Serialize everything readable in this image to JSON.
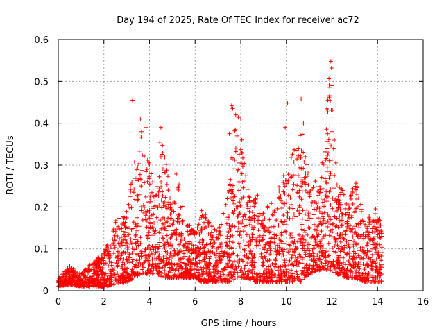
{
  "chart_data": {
    "type": "scatter",
    "title": "Day 194 of 2025, Rate Of TEC Index for receiver ac72",
    "xlabel": "GPS time / hours",
    "ylabel": "ROTI / TECUs",
    "xlim": [
      0,
      16
    ],
    "ylim": [
      0,
      0.6
    ],
    "xticks": [
      0,
      2,
      4,
      6,
      8,
      10,
      12,
      14,
      16
    ],
    "yticks": [
      0,
      0.1,
      0.2,
      0.3,
      0.4,
      0.5,
      0.6
    ],
    "xtick_labels": [
      "0",
      "2",
      "4",
      "6",
      "8",
      "10",
      "12",
      "14",
      "16"
    ],
    "ytick_labels": [
      "0",
      "0.1",
      "0.2",
      "0.3",
      "0.4",
      "0.5",
      "0.6"
    ],
    "grid": true,
    "marker": "+",
    "marker_color": "#ff0000",
    "x_data_range": [
      0,
      14.2
    ],
    "series": [
      {
        "name": "ROTI",
        "envelope": {
          "x": [
            0,
            0.5,
            1.0,
            1.5,
            2.0,
            2.5,
            3.0,
            3.3,
            3.6,
            3.8,
            4.0,
            4.3,
            4.6,
            5.0,
            5.2,
            5.5,
            6.0,
            6.3,
            7.0,
            7.5,
            7.8,
            8.0,
            8.3,
            8.7,
            9.0,
            9.5,
            10.0,
            10.4,
            10.7,
            11.0,
            11.5,
            11.9,
            12.2,
            12.7,
            13.0,
            13.5,
            14.0,
            14.2
          ],
          "upper": [
            0.03,
            0.06,
            0.04,
            0.07,
            0.09,
            0.17,
            0.19,
            0.3,
            0.38,
            0.33,
            0.31,
            0.24,
            0.36,
            0.2,
            0.29,
            0.18,
            0.14,
            0.2,
            0.14,
            0.25,
            0.44,
            0.4,
            0.27,
            0.24,
            0.2,
            0.22,
            0.3,
            0.35,
            0.38,
            0.27,
            0.26,
            0.53,
            0.3,
            0.2,
            0.27,
            0.17,
            0.21,
            0.14
          ],
          "lower": [
            0.01,
            0.015,
            0.01,
            0.01,
            0.01,
            0.015,
            0.02,
            0.03,
            0.04,
            0.04,
            0.04,
            0.04,
            0.03,
            0.03,
            0.03,
            0.03,
            0.03,
            0.02,
            0.02,
            0.02,
            0.03,
            0.03,
            0.03,
            0.02,
            0.02,
            0.02,
            0.02,
            0.02,
            0.02,
            0.04,
            0.05,
            0.05,
            0.04,
            0.03,
            0.03,
            0.02,
            0.02,
            0.02
          ]
        },
        "outliers": [
          {
            "x": 3.25,
            "y": 0.455
          },
          {
            "x": 11.95,
            "y": 0.548
          },
          {
            "x": 11.98,
            "y": 0.532
          },
          {
            "x": 12.0,
            "y": 0.49
          },
          {
            "x": 10.65,
            "y": 0.458
          },
          {
            "x": 10.05,
            "y": 0.448
          },
          {
            "x": 7.6,
            "y": 0.442
          },
          {
            "x": 7.65,
            "y": 0.435
          },
          {
            "x": 8.0,
            "y": 0.41
          },
          {
            "x": 3.6,
            "y": 0.41
          },
          {
            "x": 3.65,
            "y": 0.38
          },
          {
            "x": 3.85,
            "y": 0.39
          },
          {
            "x": 4.5,
            "y": 0.39
          },
          {
            "x": 4.45,
            "y": 0.355
          },
          {
            "x": 10.75,
            "y": 0.4
          },
          {
            "x": 9.95,
            "y": 0.39
          },
          {
            "x": 12.0,
            "y": 0.415
          },
          {
            "x": 12.0,
            "y": 0.38
          },
          {
            "x": 7.5,
            "y": 0.375
          },
          {
            "x": 8.05,
            "y": 0.36
          }
        ]
      }
    ]
  }
}
